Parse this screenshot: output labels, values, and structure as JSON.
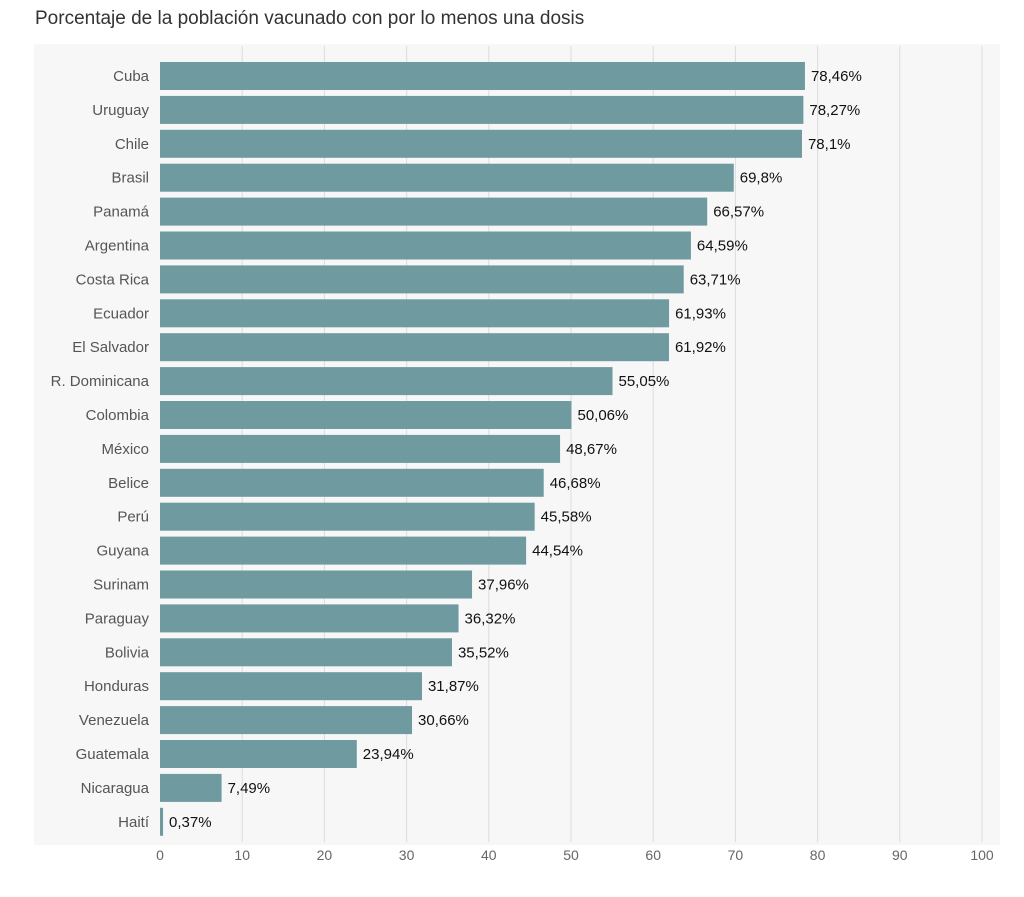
{
  "title": "Porcentaje de la población vacunado con por lo menos una dosis",
  "chart_data": {
    "type": "bar",
    "orientation": "horizontal",
    "title": "Porcentaje de la población vacunado con por lo menos una dosis",
    "categories": [
      "Cuba",
      "Uruguay",
      "Chile",
      "Brasil",
      "Panamá",
      "Argentina",
      "Costa Rica",
      "Ecuador",
      "El Salvador",
      "R. Dominicana",
      "Colombia",
      "México",
      "Belice",
      "Perú",
      "Guyana",
      "Surinam",
      "Paraguay",
      "Bolivia",
      "Honduras",
      "Venezuela",
      "Guatemala",
      "Nicaragua",
      "Haití"
    ],
    "values": [
      78.46,
      78.27,
      78.1,
      69.8,
      66.57,
      64.59,
      63.71,
      61.93,
      61.92,
      55.05,
      50.06,
      48.67,
      46.68,
      45.58,
      44.54,
      37.96,
      36.32,
      35.52,
      31.87,
      30.66,
      23.94,
      7.49,
      0.37
    ],
    "value_labels": [
      "78,46%",
      "78,27%",
      "78,1%",
      "69,8%",
      "66,57%",
      "64,59%",
      "63,71%",
      "61,93%",
      "61,92%",
      "55,05%",
      "50,06%",
      "48,67%",
      "46,68%",
      "45,58%",
      "44,54%",
      "37,96%",
      "36,32%",
      "35,52%",
      "31,87%",
      "30,66%",
      "23,94%",
      "7,49%",
      "0,37%"
    ],
    "xlim": [
      0,
      100
    ],
    "xticks": [
      "0",
      "10",
      "20",
      "30",
      "40",
      "50",
      "60",
      "70",
      "80",
      "90",
      "100"
    ],
    "grid": "vertical",
    "xlabel": "",
    "ylabel": "",
    "bar_color": "#6e9aa0",
    "grid_color": "#dcdcdc",
    "background_color": "#f7f7f7"
  }
}
